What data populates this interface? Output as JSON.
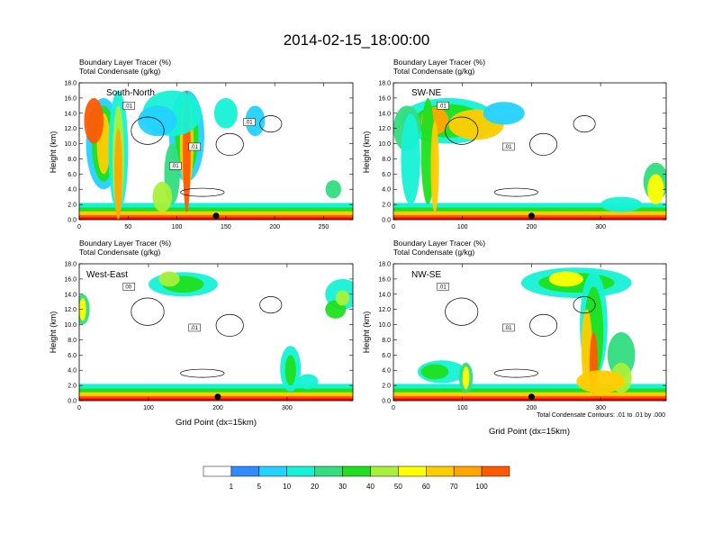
{
  "title": "2014-02-15_18:00:00",
  "colors": {
    "scale": [
      "#ffffff",
      "#2f8cff",
      "#23d2ff",
      "#16f2d6",
      "#33dd80",
      "#1fe01f",
      "#a8f03a",
      "#ffff00",
      "#ffcc00",
      "#ffa500",
      "#ff5a00",
      "#ff0000"
    ],
    "contour": "#000000",
    "marker": "#000000"
  },
  "chart_data": [
    {
      "type": "heatmap",
      "id": "south-north",
      "title": "Boundary Layer Tracer    (%)",
      "subtitle": "Total Condensate    (g/kg)",
      "label": "South-North",
      "ylabel": "Height (km)",
      "xlabel": "",
      "xlim": [
        0,
        280
      ],
      "ylim": [
        0,
        18
      ],
      "xticks": [
        0,
        50,
        100,
        150,
        200,
        250
      ],
      "yticks": [
        "0.0",
        "2.0",
        "4.0",
        "6.0",
        "8.0",
        "10.0",
        "12.0",
        "14.0",
        "16.0",
        "18.0"
      ],
      "contour_labels": [
        ".01",
        ".01",
        ".01",
        ".01"
      ],
      "marker_x": 140
    },
    {
      "type": "heatmap",
      "id": "sw-ne",
      "title": "Boundary Layer Tracer    (%)",
      "subtitle": "Total Condensate    (g/kg)",
      "label": "SW-NE",
      "ylabel": "Height (km)",
      "xlabel": "",
      "xlim": [
        0,
        395
      ],
      "ylim": [
        0,
        18
      ],
      "xticks": [
        0,
        100,
        200,
        300
      ],
      "yticks": [
        "0.0",
        "2.0",
        "4.0",
        "6.0",
        "8.0",
        "10.0",
        "12.0",
        "14.0",
        "16.0",
        "18.0"
      ],
      "contour_labels": [
        ".01",
        ".01"
      ],
      "marker_x": 200
    },
    {
      "type": "heatmap",
      "id": "west-east",
      "title": "Boundary Layer Tracer    (%)",
      "subtitle": "Total Condensate    (g/kg)",
      "label": "West-East",
      "ylabel": "Height (km)",
      "xlabel": "Grid Point (dx=15km)",
      "xlim": [
        0,
        395
      ],
      "ylim": [
        0,
        18
      ],
      "xticks": [
        0,
        100,
        200,
        300
      ],
      "yticks": [
        "0.0",
        "2.0",
        "4.0",
        "6.0",
        "8.0",
        "10.0",
        "12.0",
        "14.0",
        "16.0",
        "18.0"
      ],
      "contour_labels": [
        "00",
        ".01"
      ],
      "marker_x": 200
    },
    {
      "type": "heatmap",
      "id": "nw-se",
      "title": "Boundary Layer Tracer    (%)",
      "subtitle": "Total Condensate    (g/kg)",
      "label": "NW-SE",
      "ylabel": "Height (km)",
      "xlabel": "Grid Point (dx=15km)",
      "xlim": [
        0,
        395
      ],
      "ylim": [
        0,
        18
      ],
      "xticks": [
        0,
        100,
        200,
        300
      ],
      "yticks": [
        "0.0",
        "2.0",
        "4.0",
        "6.0",
        "8.0",
        "10.0",
        "12.0",
        "14.0",
        "16.0",
        "18.0"
      ],
      "contour_labels": [
        ".01",
        ".01"
      ],
      "marker_x": 200,
      "footnote": "Total Condensate Contours: .01 to .01 by .000"
    }
  ],
  "colorbar": {
    "labels": [
      "1",
      "5",
      "10",
      "20",
      "30",
      "40",
      "50",
      "60",
      "70",
      "100"
    ]
  }
}
